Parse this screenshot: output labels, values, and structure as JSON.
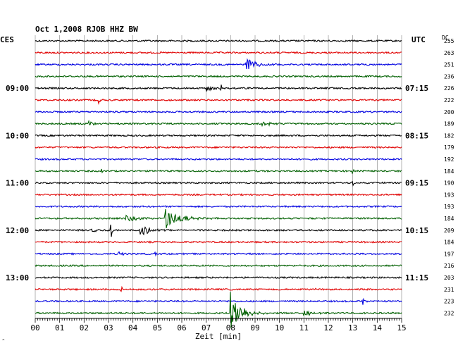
{
  "title": "Oct 1,2008   RJOB HHZ BW",
  "left_tz": "CES",
  "right_tz": "UTC",
  "dc_header": "DC",
  "corner_mark": "^",
  "colors": {
    "line1": "#000000",
    "line2": "#e00000",
    "line3": "#0000e0",
    "line4": "#006000",
    "grid": "#808080"
  },
  "chart_data": {
    "type": "helicorder",
    "station": "RJOB",
    "channel": "HHZ",
    "network": "BW",
    "date": "Oct 1,2008",
    "xlabel": "Zeit [min]",
    "xlim": [
      0,
      15
    ],
    "x_ticks": [
      "00",
      "01",
      "02",
      "03",
      "04",
      "05",
      "06",
      "07",
      "08",
      "09",
      "10",
      "11",
      "12",
      "13",
      "14",
      "15"
    ],
    "grid": true,
    "trace_color_cycle": [
      "black",
      "red",
      "blue",
      "green"
    ],
    "rows": [
      {
        "left": "CES",
        "right": "UTC",
        "dc": "255",
        "events": []
      },
      {
        "left": "",
        "right": "",
        "dc": "263",
        "events": []
      },
      {
        "left": "",
        "right": "",
        "dc": "251",
        "events": [
          {
            "minute": 8.6,
            "amplitude": 0.9,
            "decay": 0.35
          }
        ]
      },
      {
        "left": "",
        "right": "",
        "dc": "236",
        "events": []
      },
      {
        "left": "09:00",
        "right": "07:15",
        "dc": "226",
        "events": [
          {
            "minute": 7.0,
            "amplitude": 0.35,
            "decay": 0.2
          },
          {
            "minute": 7.6,
            "amplitude": 0.5,
            "decay": 0.05
          }
        ]
      },
      {
        "left": "",
        "right": "",
        "dc": "222",
        "events": [
          {
            "minute": 2.6,
            "amplitude": 0.35,
            "decay": 0.05
          }
        ]
      },
      {
        "left": "",
        "right": "",
        "dc": "200",
        "events": []
      },
      {
        "left": "",
        "right": "",
        "dc": "189",
        "events": [
          {
            "minute": 2.2,
            "amplitude": 0.3,
            "decay": 0.2
          },
          {
            "minute": 9.3,
            "amplitude": 0.25,
            "decay": 0.3
          }
        ]
      },
      {
        "left": "10:00",
        "right": "08:15",
        "dc": "182",
        "events": []
      },
      {
        "left": "",
        "right": "",
        "dc": "179",
        "events": []
      },
      {
        "left": "",
        "right": "",
        "dc": "192",
        "events": []
      },
      {
        "left": "",
        "right": "",
        "dc": "184",
        "events": [
          {
            "minute": 2.7,
            "amplitude": 0.35,
            "decay": 0.05
          },
          {
            "minute": 13.0,
            "amplitude": 0.3,
            "decay": 0.05
          }
        ]
      },
      {
        "left": "11:00",
        "right": "09:15",
        "dc": "190",
        "events": [
          {
            "minute": 13.0,
            "amplitude": 0.35,
            "decay": 0.05
          }
        ]
      },
      {
        "left": "",
        "right": "",
        "dc": "193",
        "events": []
      },
      {
        "left": "",
        "right": "",
        "dc": "193",
        "events": []
      },
      {
        "left": "",
        "right": "",
        "dc": "184",
        "events": [
          {
            "minute": 3.7,
            "amplitude": 0.35,
            "decay": 0.4
          },
          {
            "minute": 5.3,
            "amplitude": 1.1,
            "decay": 0.5
          }
        ]
      },
      {
        "left": "12:00",
        "right": "10:15",
        "dc": "209",
        "events": [
          {
            "minute": 2.3,
            "amplitude": 0.35,
            "decay": 0.2
          },
          {
            "minute": 3.1,
            "amplitude": 1.0,
            "decay": 0.05
          },
          {
            "minute": 4.3,
            "amplitude": 0.7,
            "decay": 0.3
          }
        ]
      },
      {
        "left": "",
        "right": "",
        "dc": "184",
        "events": []
      },
      {
        "left": "",
        "right": "",
        "dc": "197",
        "events": [
          {
            "minute": 3.4,
            "amplitude": 0.25,
            "decay": 0.2
          },
          {
            "minute": 4.9,
            "amplitude": 0.3,
            "decay": 0.05
          }
        ]
      },
      {
        "left": "",
        "right": "",
        "dc": "216",
        "events": []
      },
      {
        "left": "13:00",
        "right": "11:15",
        "dc": "203",
        "events": []
      },
      {
        "left": "",
        "right": "",
        "dc": "231",
        "events": [
          {
            "minute": 3.5,
            "amplitude": 1.3,
            "decay": 0.05
          },
          {
            "minute": 11.5,
            "amplitude": 0.3,
            "decay": 0.05
          }
        ]
      },
      {
        "left": "",
        "right": "",
        "dc": "223",
        "events": [
          {
            "minute": 13.4,
            "amplitude": 0.5,
            "decay": 0.05
          }
        ]
      },
      {
        "left": "",
        "right": "",
        "dc": "232",
        "events": [
          {
            "minute": 8.0,
            "amplitude": 2.2,
            "decay": 0.4
          },
          {
            "minute": 11.0,
            "amplitude": 0.35,
            "decay": 0.3
          }
        ]
      }
    ]
  }
}
